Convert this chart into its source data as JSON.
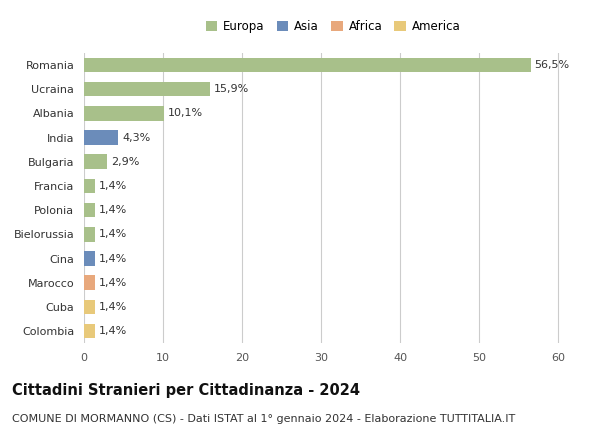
{
  "countries": [
    "Romania",
    "Ucraina",
    "Albania",
    "India",
    "Bulgaria",
    "Francia",
    "Polonia",
    "Bielorussia",
    "Cina",
    "Marocco",
    "Cuba",
    "Colombia"
  ],
  "values": [
    56.5,
    15.9,
    10.1,
    4.3,
    2.9,
    1.4,
    1.4,
    1.4,
    1.4,
    1.4,
    1.4,
    1.4
  ],
  "labels": [
    "56,5%",
    "15,9%",
    "10,1%",
    "4,3%",
    "2,9%",
    "1,4%",
    "1,4%",
    "1,4%",
    "1,4%",
    "1,4%",
    "1,4%",
    "1,4%"
  ],
  "continents": [
    "Europa",
    "Europa",
    "Europa",
    "Asia",
    "Europa",
    "Europa",
    "Europa",
    "Europa",
    "Asia",
    "Africa",
    "America",
    "America"
  ],
  "colors": {
    "Europa": "#a8c08a",
    "Asia": "#6b8cba",
    "Africa": "#e8a87c",
    "America": "#e8c97a"
  },
  "legend_order": [
    "Europa",
    "Asia",
    "Africa",
    "America"
  ],
  "legend_colors": [
    "#a8c08a",
    "#6b8cba",
    "#e8a87c",
    "#e8c97a"
  ],
  "xlim": [
    0,
    63
  ],
  "xticks": [
    0,
    10,
    20,
    30,
    40,
    50,
    60
  ],
  "title": "Cittadini Stranieri per Cittadinanza - 2024",
  "subtitle": "COMUNE DI MORMANNO (CS) - Dati ISTAT al 1° gennaio 2024 - Elaborazione TUTTITALIA.IT",
  "background_color": "#ffffff",
  "grid_color": "#cccccc",
  "bar_height": 0.6,
  "title_fontsize": 10.5,
  "subtitle_fontsize": 8,
  "label_fontsize": 8,
  "tick_fontsize": 8,
  "legend_fontsize": 8.5
}
